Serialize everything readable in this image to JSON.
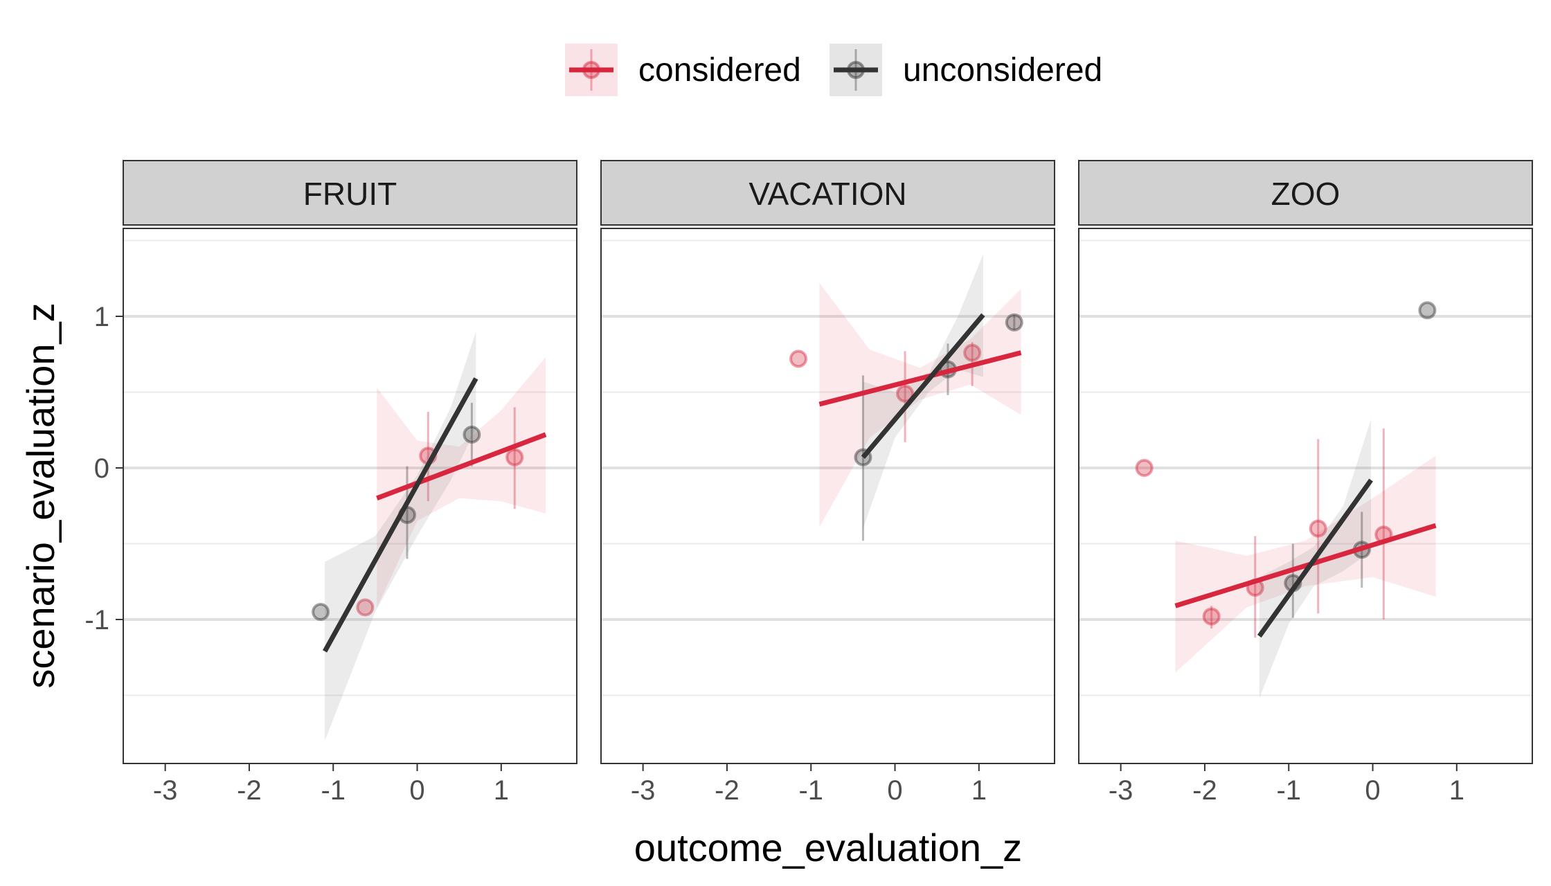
{
  "chart_data": {
    "type": "scatter",
    "xlabel": "outcome_evaluation_z",
    "ylabel": "scenario_evaluation_z",
    "xlim": [
      -3.5,
      1.9
    ],
    "ylim": [
      -1.95,
      1.58
    ],
    "x_ticks": [
      "-3",
      "-2",
      "-1",
      "0",
      "1"
    ],
    "x_tick_values": [
      -3,
      -2,
      -1,
      0,
      1
    ],
    "y_ticks": [
      "-1",
      "0",
      "1"
    ],
    "y_tick_values": [
      -1,
      0,
      1
    ],
    "grid": true,
    "legend_position": "top",
    "legend": [
      {
        "name": "considered",
        "color": "#d7263d"
      },
      {
        "name": "unconsidered",
        "color": "#333333"
      }
    ],
    "facets": [
      {
        "label": "FRUIT",
        "series": [
          {
            "name": "considered",
            "color": "#d7263d",
            "points": [
              {
                "x": -0.62,
                "y": -0.92,
                "lo": -0.92,
                "hi": -0.92
              },
              {
                "x": 0.13,
                "y": 0.08,
                "lo": -0.22,
                "hi": 0.37
              },
              {
                "x": 1.16,
                "y": 0.07,
                "lo": -0.27,
                "hi": 0.4
              }
            ],
            "fit": {
              "x0": -0.48,
              "y0": -0.2,
              "x1": 1.53,
              "y1": 0.22
            },
            "band": {
              "x": [
                -0.48,
                0.0,
                0.5,
                1.0,
                1.53
              ],
              "lo": [
                -0.92,
                -0.35,
                -0.2,
                -0.22,
                -0.3
              ],
              "hi": [
                0.53,
                0.18,
                0.14,
                0.38,
                0.73
              ]
            }
          },
          {
            "name": "unconsidered",
            "color": "#333333",
            "points": [
              {
                "x": -1.15,
                "y": -0.95,
                "lo": -0.95,
                "hi": -0.95
              },
              {
                "x": -0.12,
                "y": -0.31,
                "lo": -0.6,
                "hi": 0.01
              },
              {
                "x": 0.65,
                "y": 0.22,
                "lo": 0.01,
                "hi": 0.43
              }
            ],
            "fit": {
              "x0": -1.1,
              "y0": -1.21,
              "x1": 0.7,
              "y1": 0.59
            },
            "band": {
              "x": [
                -1.1,
                -0.5,
                0.0,
                0.4,
                0.7
              ],
              "lo": [
                -1.8,
                -0.95,
                -0.45,
                -0.08,
                0.26
              ],
              "hi": [
                -0.62,
                -0.45,
                -0.05,
                0.4,
                0.9
              ]
            }
          }
        ]
      },
      {
        "label": "VACATION",
        "series": [
          {
            "name": "considered",
            "color": "#d7263d",
            "points": [
              {
                "x": -1.15,
                "y": 0.72,
                "lo": 0.72,
                "hi": 0.72
              },
              {
                "x": 0.12,
                "y": 0.49,
                "lo": 0.17,
                "hi": 0.77
              },
              {
                "x": 0.92,
                "y": 0.76,
                "lo": 0.54,
                "hi": 0.83
              }
            ],
            "fit": {
              "x0": -0.9,
              "y0": 0.42,
              "x1": 1.5,
              "y1": 0.76
            },
            "band": {
              "x": [
                -0.9,
                -0.3,
                0.3,
                0.9,
                1.5
              ],
              "lo": [
                -0.39,
                0.2,
                0.45,
                0.55,
                0.35
              ],
              "hi": [
                1.22,
                0.78,
                0.66,
                0.85,
                1.18
              ]
            }
          },
          {
            "name": "unconsidered",
            "color": "#333333",
            "points": [
              {
                "x": -0.38,
                "y": 0.07,
                "lo": -0.48,
                "hi": 0.61
              },
              {
                "x": 0.63,
                "y": 0.65,
                "lo": 0.48,
                "hi": 0.82
              },
              {
                "x": 1.42,
                "y": 0.96,
                "lo": 0.91,
                "hi": 1.01
              }
            ],
            "fit": {
              "x0": -0.38,
              "y0": 0.07,
              "x1": 1.05,
              "y1": 1.01
            },
            "band": {
              "x": [
                -0.38,
                0.0,
                0.4,
                0.75,
                1.05
              ],
              "lo": [
                -0.4,
                0.2,
                0.5,
                0.65,
                0.6
              ],
              "hi": [
                0.57,
                0.5,
                0.62,
                1.0,
                1.41
              ]
            }
          }
        ]
      },
      {
        "label": "ZOO",
        "series": [
          {
            "name": "considered",
            "color": "#d7263d",
            "points": [
              {
                "x": -2.72,
                "y": 0.0,
                "lo": 0.0,
                "hi": 0.0
              },
              {
                "x": -1.92,
                "y": -0.98,
                "lo": -1.06,
                "hi": -0.91
              },
              {
                "x": -1.4,
                "y": -0.79,
                "lo": -1.12,
                "hi": -0.45
              },
              {
                "x": -0.65,
                "y": -0.4,
                "lo": -0.96,
                "hi": 0.19
              },
              {
                "x": 0.13,
                "y": -0.44,
                "lo": -1.0,
                "hi": 0.26
              }
            ],
            "fit": {
              "x0": -2.35,
              "y0": -0.91,
              "x1": 0.75,
              "y1": -0.38
            },
            "band": {
              "x": [
                -2.35,
                -1.5,
                -0.8,
                0.0,
                0.75
              ],
              "lo": [
                -1.35,
                -0.92,
                -0.78,
                -0.72,
                -0.85
              ],
              "hi": [
                -0.48,
                -0.58,
                -0.48,
                -0.2,
                0.08
              ]
            }
          },
          {
            "name": "unconsidered",
            "color": "#333333",
            "points": [
              {
                "x": -0.95,
                "y": -0.76,
                "lo": -0.99,
                "hi": -0.5
              },
              {
                "x": -0.13,
                "y": -0.54,
                "lo": -0.79,
                "hi": -0.29
              },
              {
                "x": 0.65,
                "y": 1.04,
                "lo": 1.04,
                "hi": 1.04
              }
            ],
            "fit": {
              "x0": -1.35,
              "y0": -1.11,
              "x1": -0.02,
              "y1": -0.08
            },
            "band": {
              "x": [
                -1.35,
                -1.0,
                -0.7,
                -0.35,
                -0.02
              ],
              "lo": [
                -1.52,
                -1.03,
                -0.78,
                -0.68,
                -0.55
              ],
              "hi": [
                -0.72,
                -0.62,
                -0.52,
                -0.25,
                0.32
              ]
            }
          }
        ]
      }
    ]
  }
}
